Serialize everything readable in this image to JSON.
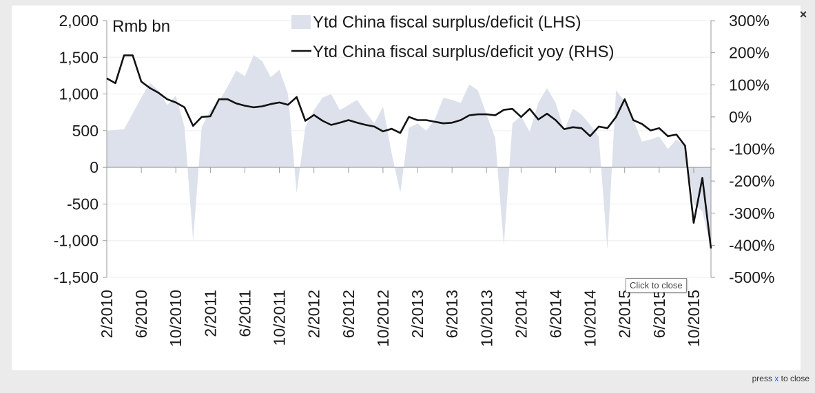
{
  "viewer": {
    "close_glyph": "×",
    "close_icon": "close-icon",
    "tooltip": "Click to close",
    "footer": {
      "prefix": "press ",
      "key": "x",
      "suffix": " to close"
    }
  },
  "chart_data": {
    "type": "area+line",
    "unit_label": "Rmb bn",
    "left_axis": {
      "range": [
        -1500,
        2000
      ],
      "ticks": [
        "2,000",
        "1,500",
        "1,000",
        "500",
        "0",
        "-500",
        "-1,000",
        "-1,500"
      ],
      "tick_values": [
        2000,
        1500,
        1000,
        500,
        0,
        -500,
        -1000,
        -1500
      ]
    },
    "right_axis": {
      "range": [
        -500,
        300
      ],
      "ticks": [
        "300%",
        "200%",
        "100%",
        "0%",
        "-100%",
        "-200%",
        "-300%",
        "-400%",
        "-500%"
      ],
      "tick_values": [
        300,
        200,
        100,
        0,
        -100,
        -200,
        -300,
        -400,
        -500
      ]
    },
    "x_tick_labels": [
      "2/2010",
      "6/2010",
      "10/2010",
      "2/2011",
      "6/2011",
      "10/2011",
      "2/2012",
      "6/2012",
      "10/2012",
      "2/2013",
      "6/2013",
      "10/2013",
      "2/2014",
      "6/2014",
      "10/2014",
      "2/2015",
      "6/2015",
      "10/2015"
    ],
    "x_tick_month_index": [
      0,
      4,
      8,
      12,
      16,
      20,
      24,
      28,
      32,
      36,
      40,
      44,
      48,
      52,
      56,
      60,
      64,
      68
    ],
    "series": [
      {
        "name": "Ytd China fiscal surplus/deficit (LHS)",
        "type": "area",
        "axis": "left",
        "color": "#dde1ec",
        "month_index": [
          0,
          2,
          4,
          5,
          6,
          7,
          8,
          9,
          10,
          11,
          12,
          13,
          14,
          15,
          16,
          17,
          18,
          19,
          20,
          21,
          22,
          23,
          24,
          25,
          26,
          27,
          28,
          29,
          30,
          31,
          32,
          33,
          34,
          35,
          36,
          37,
          38,
          39,
          40,
          41,
          42,
          43,
          44,
          45,
          46,
          47,
          48,
          49,
          50,
          51,
          52,
          53,
          54,
          55,
          56,
          57,
          58,
          59,
          60,
          61,
          62,
          63,
          64,
          65,
          66,
          67,
          68,
          69,
          70
        ],
        "values": [
          500,
          520,
          950,
          1150,
          1050,
          850,
          980,
          550,
          -1000,
          550,
          780,
          900,
          1100,
          1320,
          1240,
          1530,
          1450,
          1230,
          1330,
          1000,
          -350,
          550,
          780,
          950,
          1000,
          780,
          850,
          920,
          750,
          600,
          830,
          200,
          -350,
          540,
          600,
          500,
          650,
          950,
          920,
          880,
          1130,
          1050,
          720,
          400,
          -1070,
          600,
          700,
          480,
          880,
          1080,
          880,
          500,
          800,
          720,
          580,
          420,
          -1120,
          1050,
          900,
          650,
          350,
          380,
          420,
          250,
          380,
          300,
          -500,
          -600,
          -1100
        ],
        "values_note": "Ytd balance in Rmb bn, read from the shaded area (LHS)"
      },
      {
        "name": "Ytd China fiscal surplus/deficit yoy (RHS)",
        "type": "line",
        "axis": "right",
        "color": "#111111",
        "month_index": [
          0,
          1,
          2,
          3,
          4,
          5,
          6,
          7,
          8,
          9,
          10,
          11,
          12,
          13,
          14,
          15,
          16,
          17,
          18,
          19,
          20,
          21,
          22,
          23,
          24,
          25,
          26,
          27,
          28,
          29,
          30,
          31,
          32,
          33,
          34,
          35,
          36,
          37,
          38,
          39,
          40,
          41,
          42,
          43,
          44,
          45,
          46,
          47,
          48,
          49,
          50,
          51,
          52,
          53,
          54,
          55,
          56,
          57,
          58,
          59,
          60,
          61,
          62,
          63,
          64,
          65,
          66,
          67,
          68,
          69,
          70
        ],
        "values": [
          120,
          105,
          192,
          192,
          110,
          90,
          75,
          55,
          45,
          30,
          -28,
          0,
          2,
          55,
          55,
          42,
          35,
          30,
          33,
          40,
          45,
          38,
          62,
          -12,
          6,
          -12,
          -25,
          -18,
          -10,
          -18,
          -25,
          -30,
          -45,
          -37,
          -50,
          0,
          -10,
          -10,
          -15,
          -20,
          -18,
          -10,
          5,
          8,
          8,
          5,
          22,
          25,
          0,
          25,
          -8,
          10,
          -10,
          -38,
          -32,
          -35,
          -60,
          -30,
          -35,
          0,
          55,
          -10,
          -22,
          -42,
          -35,
          -60,
          -55,
          -90,
          -330,
          -190,
          -410
        ],
        "values_note": "year-on-year change in %, read from the line (RHS)"
      }
    ],
    "legend": "top-center",
    "grid": "horizontal, light",
    "zero_line": true
  }
}
